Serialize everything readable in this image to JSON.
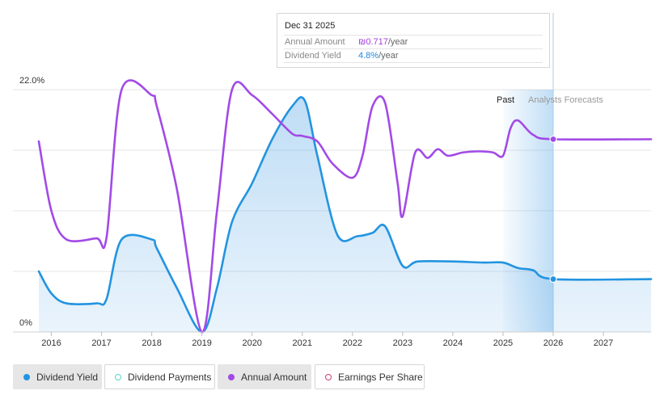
{
  "tooltip": {
    "date": "Dec 31 2025",
    "rows": [
      {
        "label": "Annual Amount",
        "value": "₪0.717",
        "unit": "/year"
      },
      {
        "label": "Dividend Yield",
        "value": "4.8%",
        "unit": "/year"
      }
    ]
  },
  "legend": [
    {
      "label": "Dividend Yield",
      "color": "#2394e0",
      "style": "filled",
      "active": true
    },
    {
      "label": "Dividend Payments",
      "color": "#56d8c8",
      "style": "hollow",
      "active": false
    },
    {
      "label": "Annual Amount",
      "color": "#a24ae6",
      "style": "filled",
      "active": true
    },
    {
      "label": "Earnings Per Share",
      "color": "#c8407a",
      "style": "hollow",
      "active": false
    }
  ],
  "chart_data": {
    "type": "line",
    "y_tick_labels": [
      "22.0%",
      "0%"
    ],
    "ylim": [
      0,
      22
    ],
    "xlim": [
      2015.75,
      2027.95
    ],
    "x_ticks": [
      2016,
      2017,
      2018,
      2019,
      2020,
      2021,
      2022,
      2023,
      2024,
      2025,
      2026,
      2027
    ],
    "regions": {
      "past_label": "Past",
      "forecast_label": "Analysts Forecasts",
      "forecast_band_start": 2025.0,
      "present": 2026.0
    },
    "grid": "horizontal",
    "series": [
      {
        "name": "Dividend Yield",
        "color": "#2394e0",
        "fill": true,
        "points": [
          [
            2015.75,
            5.5
          ],
          [
            2016.0,
            3.5
          ],
          [
            2016.3,
            2.6
          ],
          [
            2016.9,
            2.6
          ],
          [
            2017.1,
            3.0
          ],
          [
            2017.4,
            8.4
          ],
          [
            2018.0,
            8.4
          ],
          [
            2018.1,
            7.6
          ],
          [
            2018.5,
            4.0
          ],
          [
            2019.0,
            0.0
          ],
          [
            2019.3,
            4.0
          ],
          [
            2019.6,
            10.0
          ],
          [
            2020.0,
            13.5
          ],
          [
            2020.4,
            17.5
          ],
          [
            2020.8,
            20.5
          ],
          [
            2021.05,
            21.0
          ],
          [
            2021.3,
            16.0
          ],
          [
            2021.7,
            8.8
          ],
          [
            2022.1,
            8.7
          ],
          [
            2022.4,
            9.0
          ],
          [
            2022.65,
            9.6
          ],
          [
            2023.0,
            6.0
          ],
          [
            2023.3,
            6.4
          ],
          [
            2024.0,
            6.4
          ],
          [
            2024.6,
            6.3
          ],
          [
            2025.0,
            6.3
          ],
          [
            2025.3,
            5.8
          ],
          [
            2025.6,
            5.6
          ],
          [
            2026.0,
            4.8
          ],
          [
            2027.95,
            4.8
          ]
        ]
      },
      {
        "name": "Annual Amount",
        "color": "#a24ae6",
        "fill": false,
        "points": [
          [
            2015.75,
            17.3
          ],
          [
            2016.0,
            11.0
          ],
          [
            2016.3,
            8.4
          ],
          [
            2016.9,
            8.5
          ],
          [
            2017.1,
            8.6
          ],
          [
            2017.4,
            22.0
          ],
          [
            2018.0,
            21.5
          ],
          [
            2018.1,
            20.5
          ],
          [
            2018.5,
            13.0
          ],
          [
            2019.0,
            0.0
          ],
          [
            2019.3,
            11.0
          ],
          [
            2019.6,
            22.0
          ],
          [
            2020.0,
            21.5
          ],
          [
            2020.4,
            19.8
          ],
          [
            2020.8,
            18.0
          ],
          [
            2021.0,
            17.8
          ],
          [
            2021.3,
            17.3
          ],
          [
            2021.6,
            15.3
          ],
          [
            2022.0,
            14.0
          ],
          [
            2022.2,
            16.0
          ],
          [
            2022.4,
            20.5
          ],
          [
            2022.65,
            20.8
          ],
          [
            2022.9,
            13.5
          ],
          [
            2023.0,
            10.5
          ],
          [
            2023.25,
            16.3
          ],
          [
            2023.5,
            15.8
          ],
          [
            2023.7,
            16.6
          ],
          [
            2023.9,
            16.0
          ],
          [
            2024.2,
            16.3
          ],
          [
            2024.5,
            16.4
          ],
          [
            2024.8,
            16.3
          ],
          [
            2025.0,
            16.0
          ],
          [
            2025.15,
            18.5
          ],
          [
            2025.3,
            19.2
          ],
          [
            2025.6,
            17.9
          ],
          [
            2026.0,
            17.5
          ],
          [
            2027.95,
            17.5
          ]
        ]
      }
    ],
    "highlight_points": [
      {
        "series": "Dividend Yield",
        "x": 2026.0,
        "y": 4.8
      },
      {
        "series": "Annual Amount",
        "x": 2026.0,
        "y": 17.5
      }
    ]
  }
}
